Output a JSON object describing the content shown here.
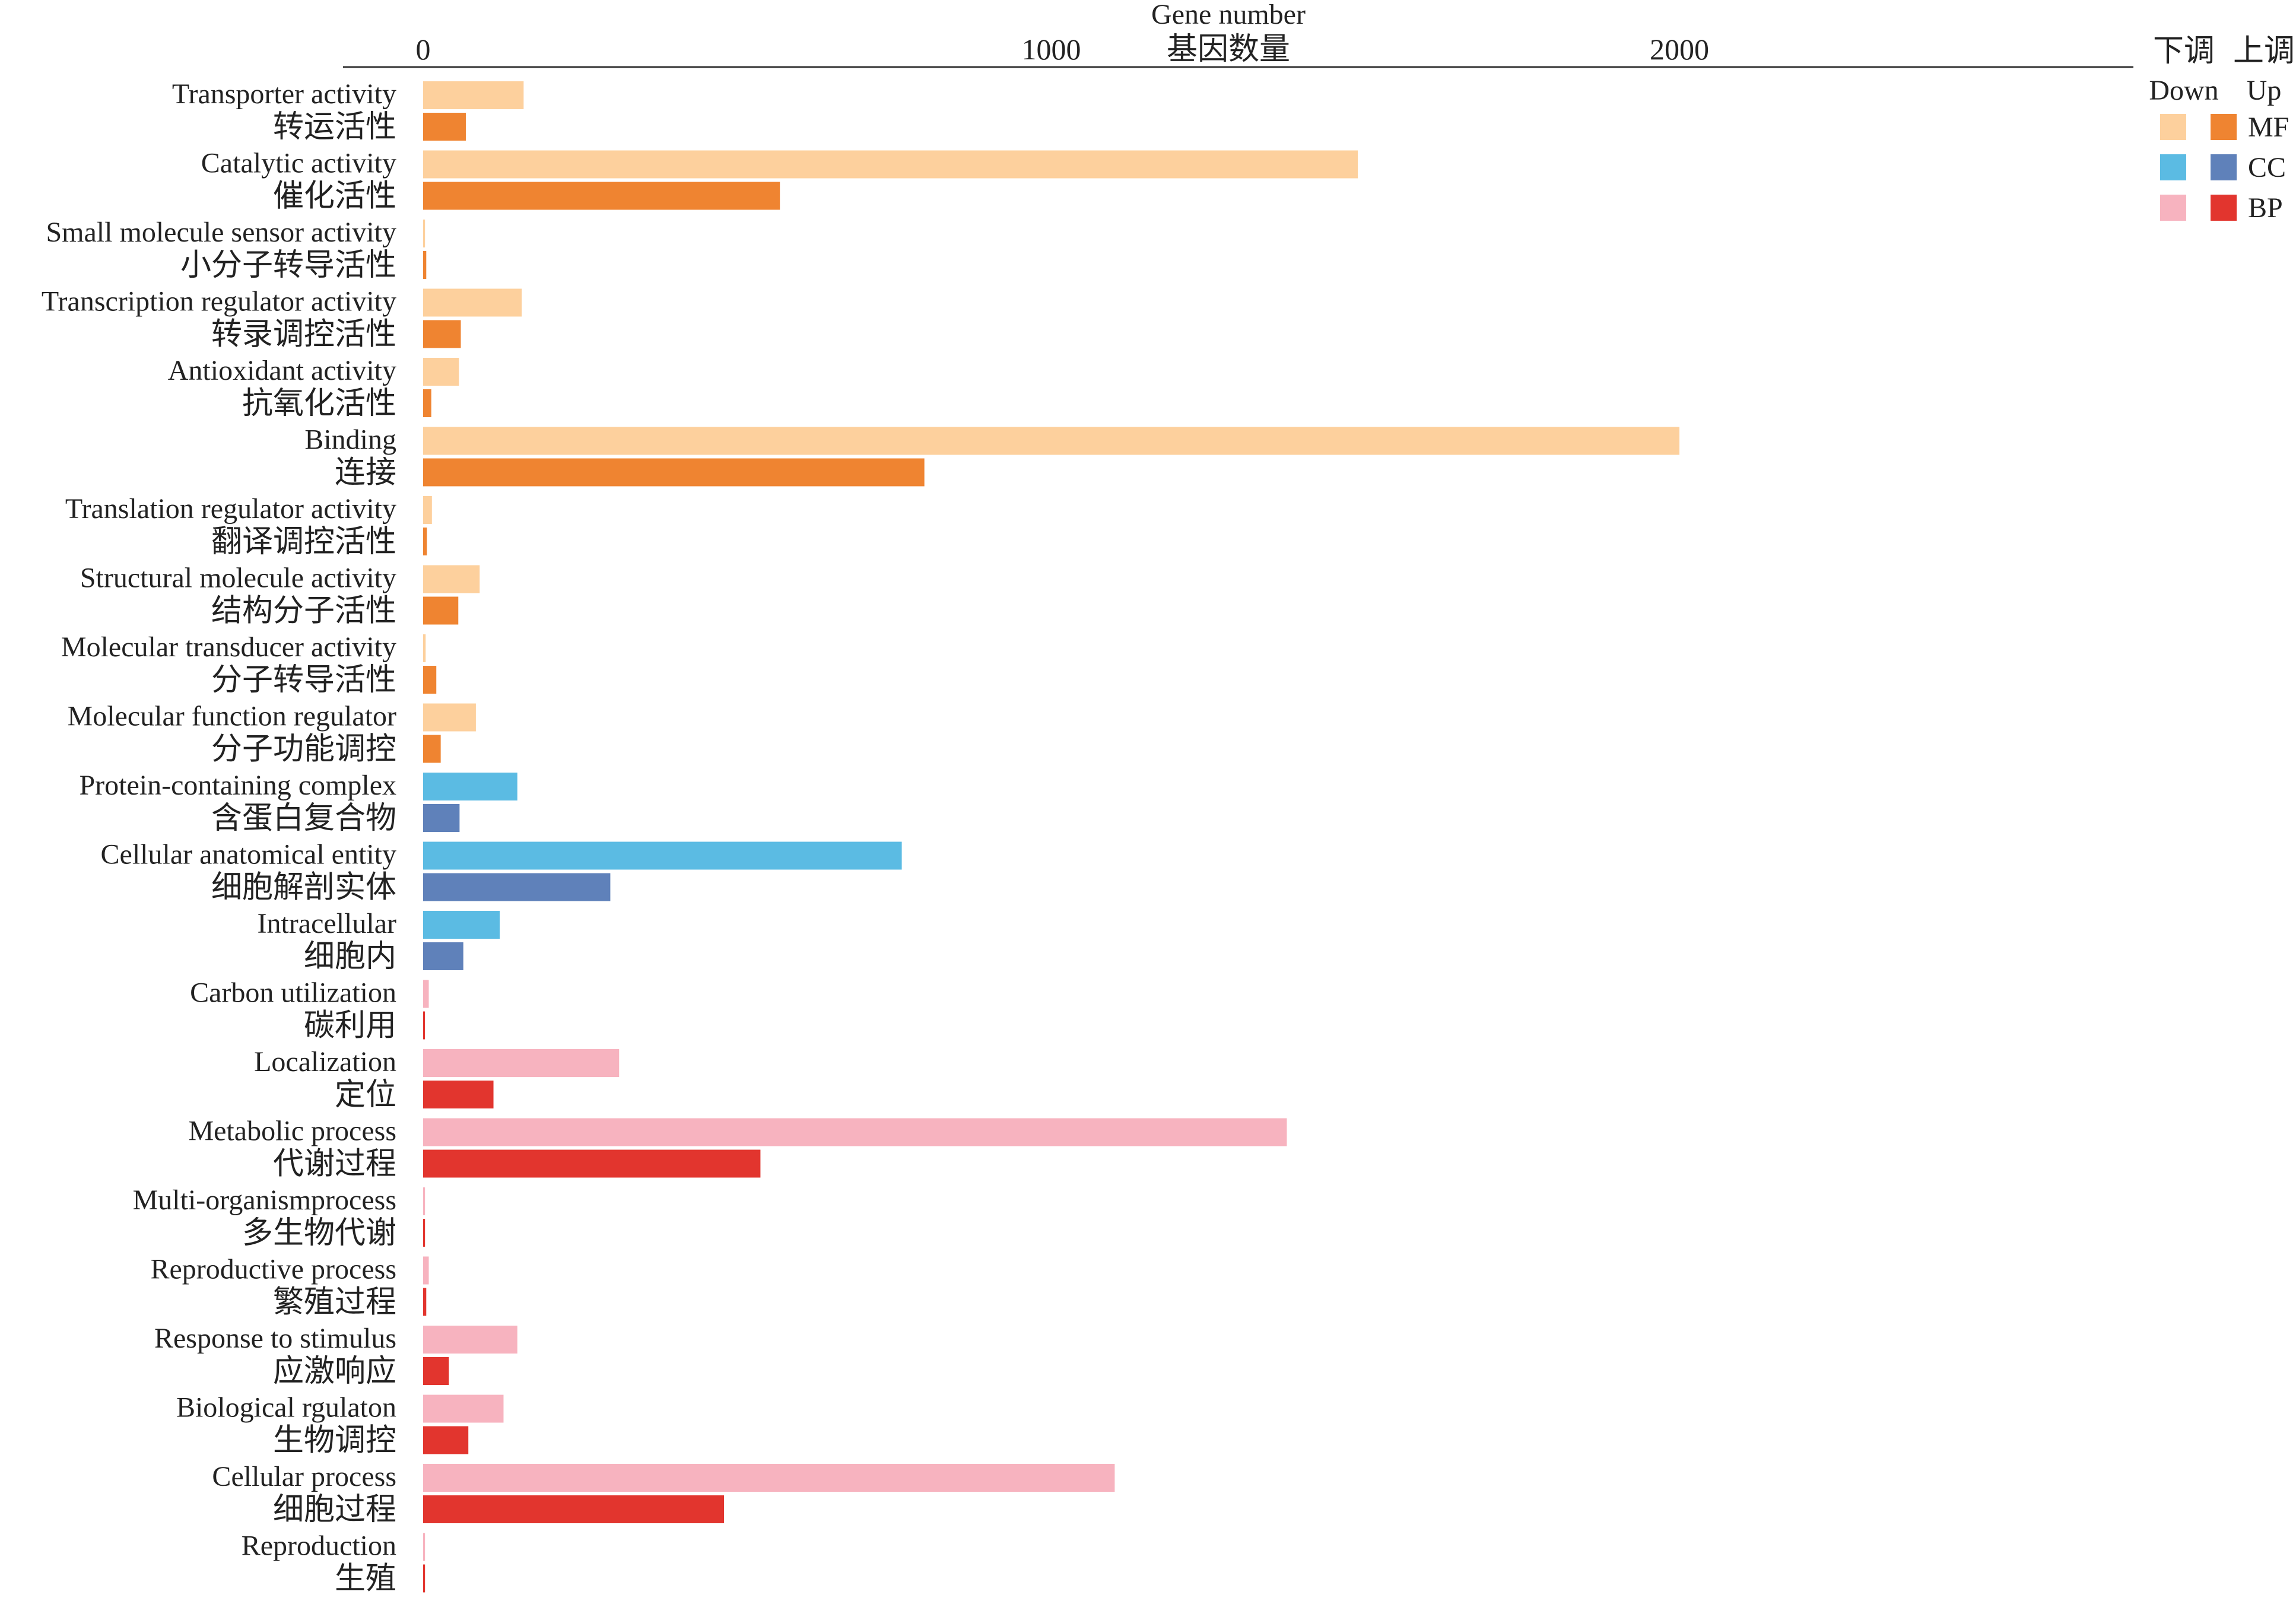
{
  "chart_data": {
    "type": "bar",
    "orientation": "horizontal",
    "title_lines": [
      "Gene number",
      "基因数量"
    ],
    "x_ticks": [
      0,
      1000,
      2000
    ],
    "xlim": [
      0,
      2750
    ],
    "legend": {
      "placement": "top-right",
      "headers": [
        {
          "cn": "下调",
          "en": "Down"
        },
        {
          "cn": "上调",
          "en": "Up"
        }
      ],
      "groups": [
        {
          "key": "MF",
          "down_color": "#fdd09d",
          "up_color": "#ef8431"
        },
        {
          "key": "CC",
          "down_color": "#5bbbe3",
          "up_color": "#5f81ba"
        },
        {
          "key": "BP",
          "down_color": "#f7b3bf",
          "up_color": "#e2352e"
        }
      ]
    },
    "categories": [
      {
        "en": "Transporter activity",
        "cn": "转运活性",
        "group": "MF",
        "down": 160,
        "up": 68
      },
      {
        "en": "Catalytic activity",
        "cn": "催化活性",
        "group": "MF",
        "down": 1488,
        "up": 568
      },
      {
        "en": "Small molecule sensor activity",
        "cn": "小分子转导活性",
        "group": "MF",
        "down": 3,
        "up": 5
      },
      {
        "en": "Transcription regulator activity",
        "cn": "转录调控活性",
        "group": "MF",
        "down": 157,
        "up": 60
      },
      {
        "en": "Antioxidant activity",
        "cn": "抗氧化活性",
        "group": "MF",
        "down": 57,
        "up": 13
      },
      {
        "en": "Binding",
        "cn": "连接",
        "group": "MF",
        "down": 2000,
        "up": 798
      },
      {
        "en": "Translation regulator activity",
        "cn": "翻译调控活性",
        "group": "MF",
        "down": 14,
        "up": 6
      },
      {
        "en": "Structural molecule activity",
        "cn": "结构分子活性",
        "group": "MF",
        "down": 90,
        "up": 56
      },
      {
        "en": "Molecular transducer activity",
        "cn": "分子转导活性",
        "group": "MF",
        "down": 4,
        "up": 21
      },
      {
        "en": "Molecular function regulator",
        "cn": "分子功能调控",
        "group": "MF",
        "down": 84,
        "up": 28
      },
      {
        "en": "Protein-containing complex",
        "cn": "含蛋白复合物",
        "group": "CC",
        "down": 150,
        "up": 58
      },
      {
        "en": "Cellular anatomical entity",
        "cn": "细胞解剖实体",
        "group": "CC",
        "down": 762,
        "up": 298
      },
      {
        "en": "Intracellular",
        "cn": "细胞内",
        "group": "CC",
        "down": 122,
        "up": 64
      },
      {
        "en": "Carbon utilization",
        "cn": "碳利用",
        "group": "BP",
        "down": 9,
        "up": 1
      },
      {
        "en": "Localization",
        "cn": "定位",
        "group": "BP",
        "down": 312,
        "up": 112
      },
      {
        "en": "Metabolic process",
        "cn": "代谢过程",
        "group": "BP",
        "down": 1375,
        "up": 537
      },
      {
        "en": "Multi-organismprocess",
        "cn": "多生物代谢",
        "group": "BP",
        "down": 3,
        "up": 3
      },
      {
        "en": "Reproductive process",
        "cn": "繁殖过程",
        "group": "BP",
        "down": 9,
        "up": 5
      },
      {
        "en": "Response to stimulus",
        "cn": "应激响应",
        "group": "BP",
        "down": 150,
        "up": 41
      },
      {
        "en": "Biological rgulaton",
        "cn": "生物调控",
        "group": "BP",
        "down": 128,
        "up": 72
      },
      {
        "en": "Cellular process",
        "cn": "细胞过程",
        "group": "BP",
        "down": 1101,
        "up": 479
      },
      {
        "en": "Reproduction",
        "cn": "生殖",
        "group": "BP",
        "down": 3,
        "up": 3
      }
    ]
  }
}
